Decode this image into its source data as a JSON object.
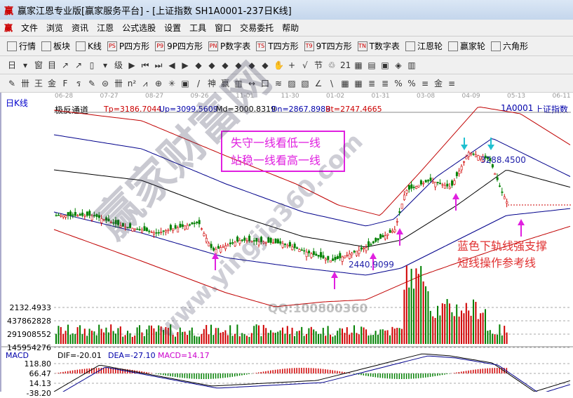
{
  "window": {
    "title": "赢家江恩专业版[赢家服务平台] - [上证指数  SH1A0001-237日K线]",
    "logo": "赢"
  },
  "menu": [
    "文件",
    "浏览",
    "资讯",
    "江恩",
    "公式选股",
    "设置",
    "工具",
    "窗口",
    "交易委托",
    "帮助"
  ],
  "toolbar1": [
    {
      "icon": "grid-icon",
      "label": "行情"
    },
    {
      "icon": "blocks-icon",
      "label": "板块"
    },
    {
      "icon": "kline-icon",
      "label": "K线"
    },
    {
      "icon": "PS",
      "label": "P四方形"
    },
    {
      "icon": "P9",
      "label": "9P四方形"
    },
    {
      "icon": "PN",
      "label": "P数字表"
    },
    {
      "icon": "TS",
      "label": "T四方形"
    },
    {
      "icon": "T9",
      "label": "9T四方形"
    },
    {
      "icon": "TN",
      "label": "T数字表"
    },
    {
      "icon": "target-icon",
      "label": "江恩轮"
    },
    {
      "icon": "big-icon",
      "label": "赢家轮"
    },
    {
      "icon": "hexagon-icon",
      "label": "六角形"
    }
  ],
  "toolbar2": [
    "日",
    "▾",
    "窗",
    "目",
    "↗",
    "↗",
    "▯",
    "▾",
    "级",
    "▶",
    "⏮",
    "⏭",
    "◀",
    "▶",
    "◆",
    "◆",
    "◆",
    "◆",
    "◆",
    "◆",
    "✋",
    "+",
    "√",
    "节",
    "♲",
    "21",
    "▦",
    "▤",
    "▣",
    "◈",
    "▥"
  ],
  "toolbar3": [
    "✎",
    "卌",
    "王",
    "金",
    "F",
    "ร",
    "✎",
    "⊜",
    "卌",
    "n²",
    "⩘",
    "⊕",
    "✳",
    "▣",
    "/",
    "神",
    "赢",
    "▥",
    "↔",
    "口",
    "≋",
    "▨",
    "▧",
    "∠",
    "\\",
    "▦",
    "▦",
    "≣",
    "≣",
    "%",
    "%",
    "≡",
    "金",
    "≡"
  ],
  "chart": {
    "period": "日K线",
    "dates": [
      "06-28",
      "07-27",
      "08-27",
      "09-26",
      "11-01",
      "11-30",
      "01-02",
      "01-31",
      "03-08",
      "04-09",
      "05-13",
      "06-11"
    ],
    "indicator": "极反通道",
    "tp": "Tp=3186.7044",
    "up": "Up=3099.5609",
    "md": "Md=3000.8319",
    "dn": "Dn=2867.8989",
    "bt": "Bt=2747.4665",
    "code": "1A0001",
    "name": "上证指数",
    "annotation_box": [
      "失守一线看低一线",
      "站稳一线看高一线"
    ],
    "high_label": "3288.4500",
    "low_label": "2440.9099",
    "note": [
      "蓝色下轨线强支撑",
      "短线操作参考线"
    ],
    "watermark": "赢家财富网",
    "watermark_url": "www.yingjia360.com",
    "qq": "QQ:100800360",
    "volume_axis": [
      "2132.4933",
      "437862828",
      "291908552",
      "145954276"
    ],
    "macd_title": "MACD",
    "dif": "DIF=-20.01",
    "dea": "DEA=-27.10",
    "macd": "MACD=14.17",
    "macd_axis": [
      "118.80",
      "66.47",
      "14.13",
      "-38.20"
    ],
    "colors": {
      "up": "#d00000",
      "down": "#008000",
      "blue": "#00008b",
      "magenta": "#e020e0",
      "red_band": "#c00000"
    }
  }
}
